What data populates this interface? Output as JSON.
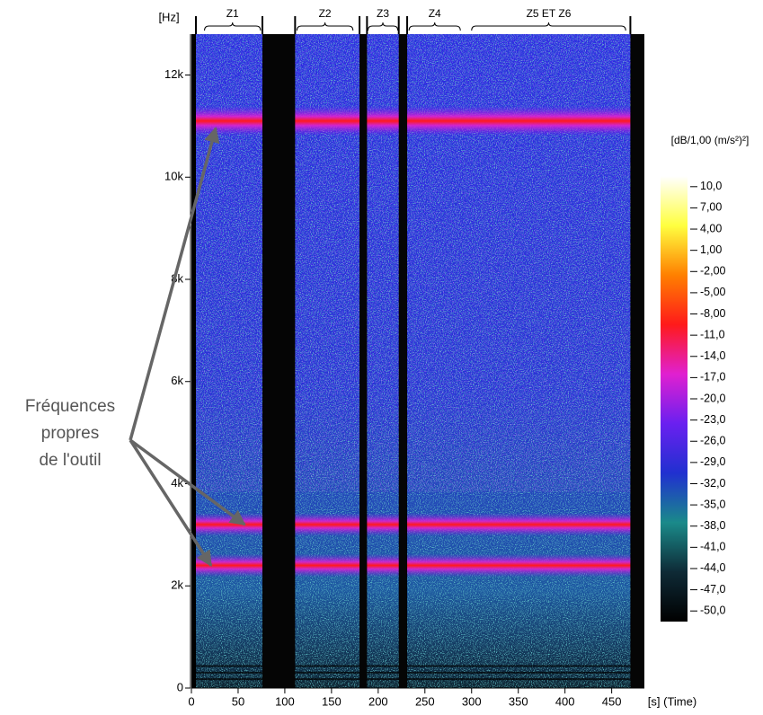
{
  "chart_data": {
    "type": "spectrogram",
    "y_unit": "[Hz]",
    "x_label": "[s] (Time)",
    "colorbar_title": "[dB/1,00 (m/s²)²]",
    "xlim": [
      0,
      485
    ],
    "xticks": [
      0,
      50,
      100,
      150,
      200,
      250,
      300,
      350,
      400,
      450
    ],
    "ylim": [
      0,
      12800
    ],
    "yticks": [
      0,
      {
        "value": 2000,
        "label": "2k"
      },
      {
        "value": 4000,
        "label": "4k"
      },
      {
        "value": 6000,
        "label": "6k"
      },
      {
        "value": 8000,
        "label": "8k"
      },
      {
        "value": 10000,
        "label": "10k"
      },
      {
        "value": 12000,
        "label": "12k"
      }
    ],
    "clim": [
      -51.5,
      11.5
    ],
    "cticks": [
      {
        "value": 10,
        "label": "10,0"
      },
      {
        "value": 7,
        "label": "7,00"
      },
      {
        "value": 4,
        "label": "4,00"
      },
      {
        "value": 1,
        "label": "1,00"
      },
      {
        "value": -2,
        "label": "-2,00"
      },
      {
        "value": -5,
        "label": "-5,00"
      },
      {
        "value": -8,
        "label": "-8,00"
      },
      {
        "value": -11,
        "label": "-11,0"
      },
      {
        "value": -14,
        "label": "-14,0"
      },
      {
        "value": -17,
        "label": "-17,0"
      },
      {
        "value": -20,
        "label": "-20,0"
      },
      {
        "value": -23,
        "label": "-23,0"
      },
      {
        "value": -26,
        "label": "-26,0"
      },
      {
        "value": -29,
        "label": "-29,0"
      },
      {
        "value": -32,
        "label": "-32,0"
      },
      {
        "value": -35,
        "label": "-35,0"
      },
      {
        "value": -38,
        "label": "-38,0"
      },
      {
        "value": -41,
        "label": "-41,0"
      },
      {
        "value": -44,
        "label": "-44,0"
      },
      {
        "value": -47,
        "label": "-47,0"
      },
      {
        "value": -50,
        "label": "-50,0"
      }
    ],
    "colormap": [
      "#000000",
      "#0e2a36",
      "#1a8a8a",
      "#2030d0",
      "#6a20f0",
      "#e020d0",
      "#ff1a1a",
      "#ff8000",
      "#ffff40",
      "#ffffff"
    ],
    "zones": [
      {
        "name": "Z1",
        "start": 14,
        "end": 74
      },
      {
        "name": "Z2",
        "start": 113,
        "end": 173
      },
      {
        "name": "Z3",
        "start": 189,
        "end": 221
      },
      {
        "name": "Z4",
        "start": 233,
        "end": 288
      },
      {
        "name": "Z5 ET Z6",
        "start": 300,
        "end": 465
      }
    ],
    "gaps": [
      [
        76,
        111
      ],
      [
        180,
        188
      ],
      [
        222,
        231
      ],
      [
        470,
        485
      ]
    ],
    "peaks_hz": [
      11100,
      3200,
      2400
    ],
    "annotation": [
      "Fréquences",
      "propres",
      "de l'outil"
    ]
  }
}
